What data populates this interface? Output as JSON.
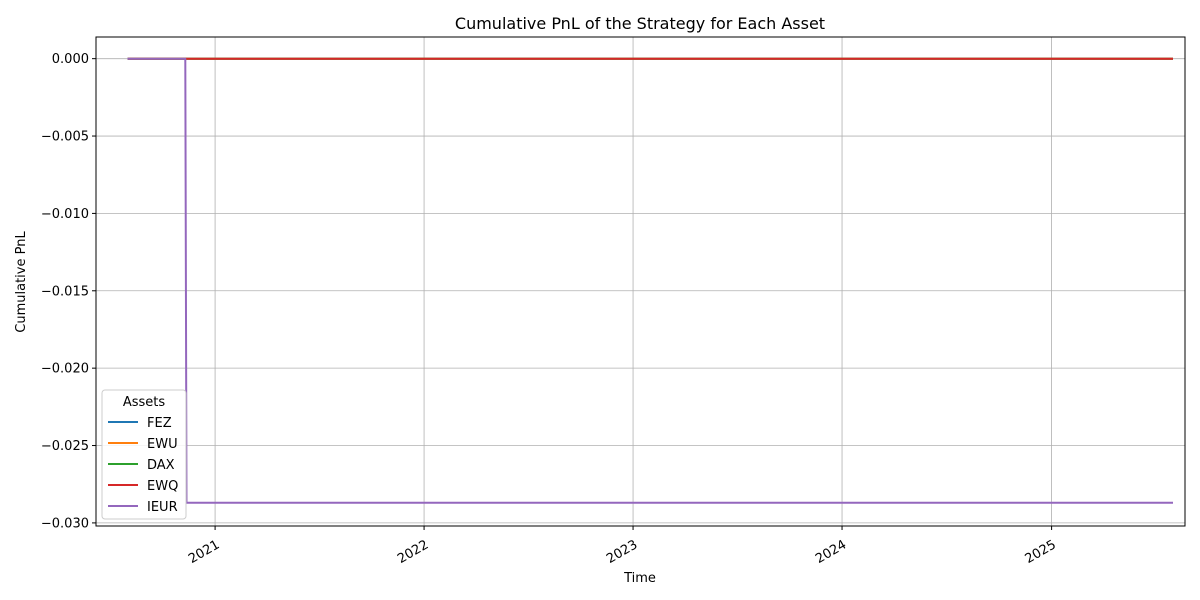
{
  "chart_data": {
    "type": "line",
    "title": "Cumulative PnL of the Strategy for Each Asset",
    "xlabel": "Time",
    "ylabel": "Cumulative PnL",
    "xlim": [
      "2020-06-07",
      "2025-08-22"
    ],
    "ylim": [
      -0.0302,
      0.0014
    ],
    "x_ticks": [
      "2021",
      "2022",
      "2023",
      "2024",
      "2025"
    ],
    "y_ticks": [
      0.0,
      -0.005,
      -0.01,
      -0.015,
      -0.02,
      -0.025,
      -0.03
    ],
    "y_tick_labels": [
      "0.000",
      "−0.005",
      "−0.010",
      "−0.015",
      "−0.020",
      "−0.025",
      "−0.030"
    ],
    "grid": true,
    "legend": {
      "title": "Assets",
      "placement": "lower-left"
    },
    "series": [
      {
        "name": "FEZ",
        "color": "#1f77b4",
        "x": [
          "2020-08-01",
          "2025-08-01"
        ],
        "y": [
          0.0,
          0.0
        ]
      },
      {
        "name": "EWU",
        "color": "#ff7f0e",
        "x": [
          "2020-08-01",
          "2025-08-01"
        ],
        "y": [
          0.0,
          0.0
        ]
      },
      {
        "name": "DAX",
        "color": "#2ca02c",
        "x": [
          "2020-08-01",
          "2025-08-01"
        ],
        "y": [
          0.0,
          0.0
        ]
      },
      {
        "name": "EWQ",
        "color": "#d62728",
        "x": [
          "2020-08-01",
          "2025-08-01"
        ],
        "y": [
          0.0,
          0.0
        ]
      },
      {
        "name": "IEUR",
        "color": "#9467bd",
        "x": [
          "2020-08-01",
          "2020-11-10",
          "2020-11-12",
          "2025-08-01"
        ],
        "y": [
          0.0,
          0.0,
          -0.0287,
          -0.0287
        ]
      }
    ]
  }
}
